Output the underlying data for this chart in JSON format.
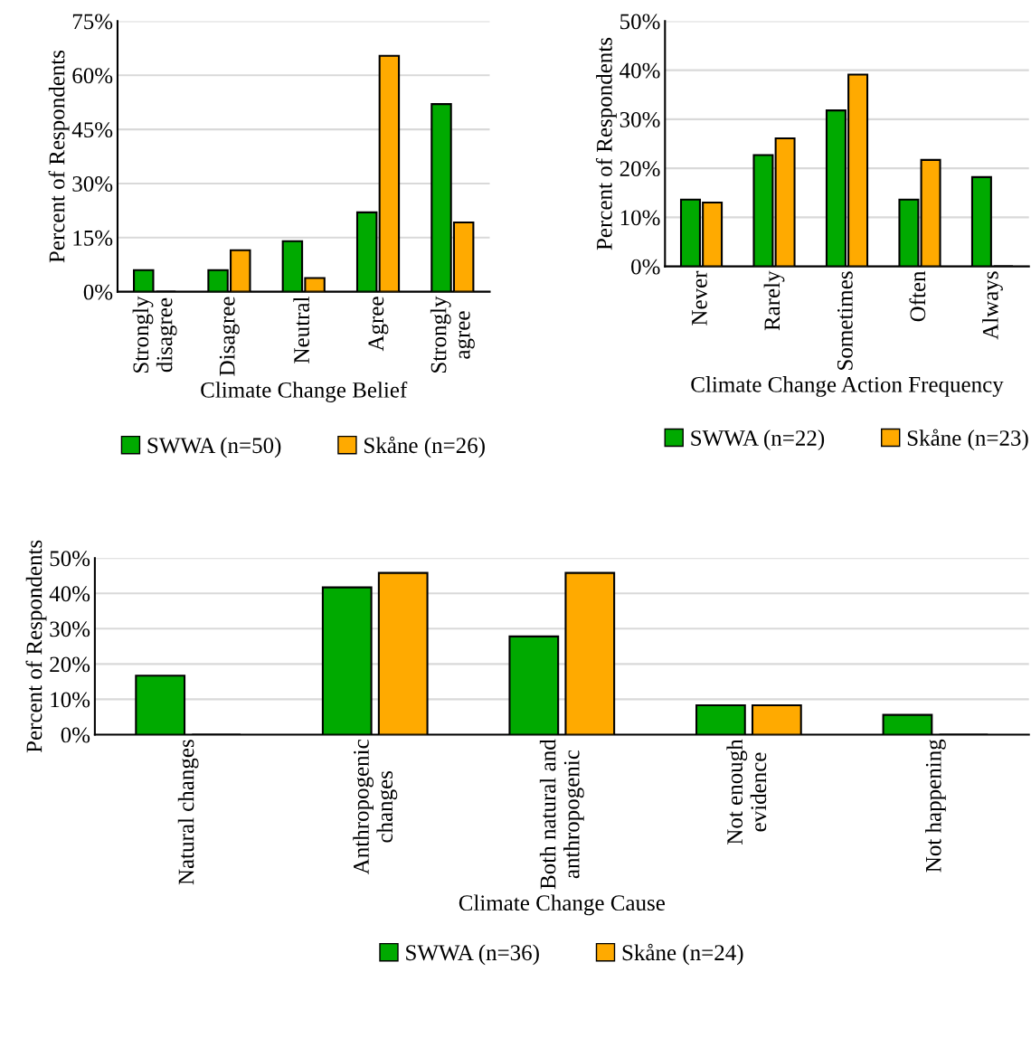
{
  "chart_data": [
    {
      "type": "bar",
      "xlabel": "Climate Change Belief",
      "ylabel": "Percent of Respondents",
      "categories": [
        "Strongly\ndisagree",
        "Disagree",
        "Neutral",
        "Agree",
        "Strongly\nagree"
      ],
      "series": [
        {
          "name": "SWWA (n=50)",
          "color": "#00aa00",
          "values": [
            6,
            6,
            14,
            22,
            52
          ]
        },
        {
          "name": "Skåne (n=26)",
          "color": "#ffaa00",
          "values": [
            0,
            11.5,
            3.8,
            65.4,
            19.2
          ]
        }
      ],
      "ylim": [
        0,
        75
      ],
      "yticks": [
        {
          "value": 0,
          "label": "0%"
        },
        {
          "value": 15,
          "label": "15%"
        },
        {
          "value": 30,
          "label": "30%"
        },
        {
          "value": 45,
          "label": "45%"
        },
        {
          "value": 60,
          "label": "60%"
        },
        {
          "value": 75,
          "label": "75%"
        }
      ],
      "grid": "y",
      "legend": "bottom"
    },
    {
      "type": "bar",
      "xlabel": "Climate Change Action Frequency",
      "ylabel": "Percent of Respondents",
      "categories": [
        "Never",
        "Rarely",
        "Sometimes",
        "Often",
        "Always"
      ],
      "series": [
        {
          "name": "SWWA (n=22)",
          "color": "#00aa00",
          "values": [
            13.6,
            22.7,
            31.8,
            13.6,
            18.2
          ]
        },
        {
          "name": "Skåne (n=23)",
          "color": "#ffaa00",
          "values": [
            13.0,
            26.1,
            39.1,
            21.7,
            0
          ]
        }
      ],
      "ylim": [
        0,
        50
      ],
      "yticks": [
        {
          "value": 0,
          "label": "0%"
        },
        {
          "value": 10,
          "label": "10%"
        },
        {
          "value": 20,
          "label": "20%"
        },
        {
          "value": 30,
          "label": "30%"
        },
        {
          "value": 40,
          "label": "40%"
        },
        {
          "value": 50,
          "label": "50%"
        }
      ],
      "grid": "y",
      "legend": "bottom"
    },
    {
      "type": "bar",
      "xlabel": "Climate Change Cause",
      "ylabel": "Percent of Respondents",
      "categories": [
        "Natural changes",
        "Anthropogenic\nchanges",
        "Both natural and\nanthropogenic",
        "Not enough\nevidence",
        "Not happening"
      ],
      "series": [
        {
          "name": "SWWA (n=36)",
          "color": "#00aa00",
          "values": [
            16.7,
            41.7,
            27.8,
            8.3,
            5.6
          ]
        },
        {
          "name": "Skåne (n=24)",
          "color": "#ffaa00",
          "values": [
            0,
            45.8,
            45.8,
            8.3,
            0
          ]
        }
      ],
      "ylim": [
        0,
        50
      ],
      "yticks": [
        {
          "value": 0,
          "label": "0%"
        },
        {
          "value": 10,
          "label": "10%"
        },
        {
          "value": 20,
          "label": "20%"
        },
        {
          "value": 30,
          "label": "30%"
        },
        {
          "value": 40,
          "label": "40%"
        },
        {
          "value": 50,
          "label": "50%"
        }
      ],
      "grid": "y",
      "legend": "bottom"
    }
  ]
}
